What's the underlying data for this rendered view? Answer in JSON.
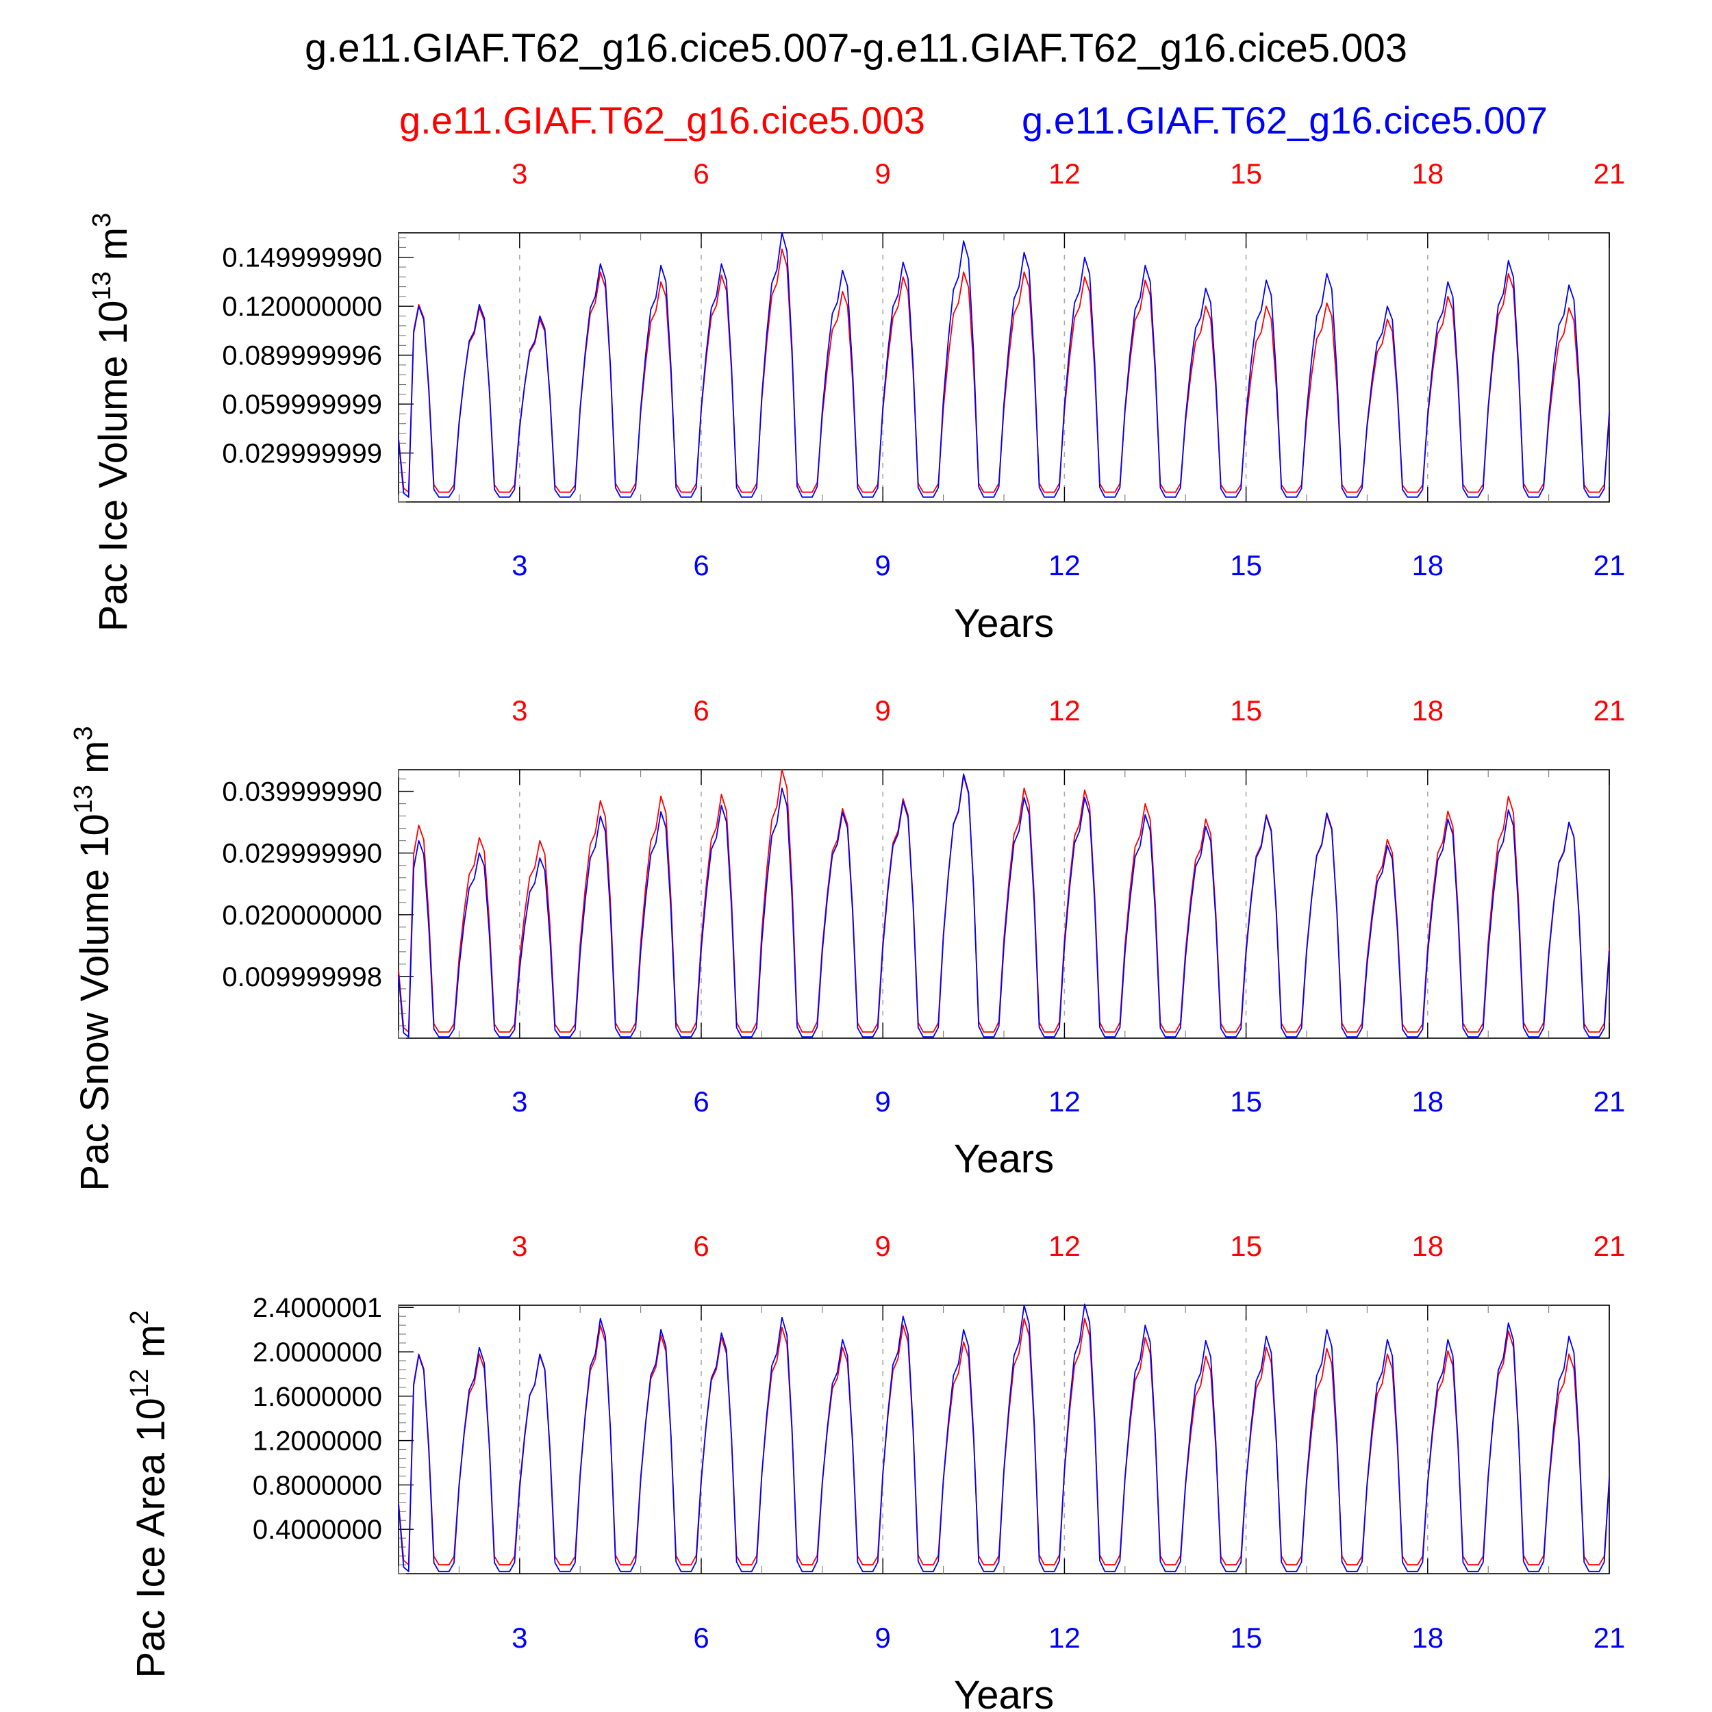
{
  "figure": {
    "title": "g.e11.GIAF.T62_g16.cice5.007-g.e11.GIAF.T62_g16.cice5.003",
    "legend": [
      {
        "label": "g.e11.GIAF.T62_g16.cice5.003",
        "color": "#ff0000"
      },
      {
        "label": "g.e11.GIAF.T62_g16.cice5.007",
        "color": "#0000ff"
      }
    ]
  },
  "chart_data": [
    {
      "type": "line",
      "ylabel": {
        "base": "Pac Ice Volume 10",
        "exp": "13",
        "unit": " m",
        "unit_exp": "3"
      },
      "xlabel": "Years",
      "xlim": [
        1,
        21
      ],
      "ylim": [
        0,
        0.165
      ],
      "yticks": [
        {
          "value": 0.03,
          "label": "0.029999999"
        },
        {
          "value": 0.06,
          "label": "0.059999999"
        },
        {
          "value": 0.09,
          "label": "0.089999996"
        },
        {
          "value": 0.12,
          "label": "0.120000000"
        },
        {
          "value": 0.15,
          "label": "0.149999990"
        }
      ],
      "xticks_top": [
        "3",
        "6",
        "9",
        "12",
        "15",
        "18",
        "21"
      ],
      "xticks_bottom": [
        "3",
        "6",
        "9",
        "12",
        "15",
        "18",
        "21"
      ],
      "series": [
        {
          "name": "g.e11.GIAF.T62_g16.cice5.003",
          "color": "#ff0000",
          "min": 0.006,
          "peaks": [
            0.121,
            0.119,
            0.112,
            0.141,
            0.135,
            0.139,
            0.155,
            0.129,
            0.138,
            0.141,
            0.141,
            0.138,
            0.136,
            0.12,
            0.12,
            0.122,
            0.112,
            0.126,
            0.14,
            0.119
          ]
        },
        {
          "name": "g.e11.GIAF.T62_g16.cice5.007",
          "color": "#0000ff",
          "min": 0.003,
          "peaks": [
            0.12,
            0.121,
            0.114,
            0.146,
            0.145,
            0.146,
            0.165,
            0.142,
            0.147,
            0.16,
            0.153,
            0.15,
            0.145,
            0.131,
            0.136,
            0.14,
            0.12,
            0.135,
            0.148,
            0.133
          ]
        }
      ]
    },
    {
      "type": "line",
      "ylabel": {
        "base": "Pac Snow Volume 10",
        "exp": "13",
        "unit": " m",
        "unit_exp": "3"
      },
      "xlabel": "Years",
      "xlim": [
        1,
        21
      ],
      "ylim": [
        0,
        0.0435
      ],
      "yticks": [
        {
          "value": 0.01,
          "label": "0.009999998"
        },
        {
          "value": 0.02,
          "label": "0.020000000"
        },
        {
          "value": 0.03,
          "label": "0.029999990"
        },
        {
          "value": 0.04,
          "label": "0.039999990"
        }
      ],
      "xticks_top": [
        "3",
        "6",
        "9",
        "12",
        "15",
        "18",
        "21"
      ],
      "xticks_bottom": [
        "3",
        "6",
        "9",
        "12",
        "15",
        "18",
        "21"
      ],
      "series": [
        {
          "name": "g.e11.GIAF.T62_g16.cice5.003",
          "color": "#ff0000",
          "min": 0.001,
          "peaks": [
            0.0345,
            0.0325,
            0.032,
            0.0385,
            0.0392,
            0.0395,
            0.0435,
            0.0372,
            0.0388,
            0.0425,
            0.0405,
            0.0402,
            0.038,
            0.0355,
            0.0362,
            0.0362,
            0.0322,
            0.0368,
            0.0392,
            0.035
          ]
        },
        {
          "name": "g.e11.GIAF.T62_g16.cice5.007",
          "color": "#0000ff",
          "min": 0.0002,
          "peaks": [
            0.032,
            0.03,
            0.0292,
            0.036,
            0.0367,
            0.0377,
            0.0405,
            0.0366,
            0.0384,
            0.0428,
            0.039,
            0.039,
            0.0362,
            0.0343,
            0.036,
            0.0365,
            0.0312,
            0.0355,
            0.037,
            0.035
          ]
        }
      ]
    },
    {
      "type": "line",
      "ylabel": {
        "base": "Pac Ice Area 10",
        "exp": "12",
        "unit": " m",
        "unit_exp": "2"
      },
      "xlabel": "Years",
      "xlim": [
        1,
        21
      ],
      "ylim": [
        0,
        2.42
      ],
      "yticks": [
        {
          "value": 0.4,
          "label": "0.4000000"
        },
        {
          "value": 0.8,
          "label": "0.8000000"
        },
        {
          "value": 1.2,
          "label": "1.2000000"
        },
        {
          "value": 1.6,
          "label": "1.6000000"
        },
        {
          "value": 2.0,
          "label": "2.0000000"
        },
        {
          "value": 2.4,
          "label": "2.4000001"
        }
      ],
      "xticks_top": [
        "3",
        "6",
        "9",
        "12",
        "15",
        "18",
        "21"
      ],
      "xticks_bottom": [
        "3",
        "6",
        "9",
        "12",
        "15",
        "18",
        "21"
      ],
      "series": [
        {
          "name": "g.e11.GIAF.T62_g16.cice5.003",
          "color": "#ff0000",
          "min": 0.08,
          "peaks": [
            1.98,
            1.98,
            1.97,
            2.24,
            2.15,
            2.13,
            2.22,
            2.04,
            2.24,
            2.09,
            2.3,
            2.3,
            2.13,
            1.96,
            2.04,
            2.03,
            1.98,
            2.01,
            2.19,
            1.98
          ]
        },
        {
          "name": "g.e11.GIAF.T62_g16.cice5.007",
          "color": "#0000ff",
          "min": 0.02,
          "peaks": [
            1.97,
            2.04,
            1.98,
            2.3,
            2.2,
            2.17,
            2.31,
            2.11,
            2.32,
            2.2,
            2.42,
            2.43,
            2.24,
            2.1,
            2.14,
            2.2,
            2.11,
            2.11,
            2.26,
            2.14
          ]
        }
      ]
    }
  ]
}
